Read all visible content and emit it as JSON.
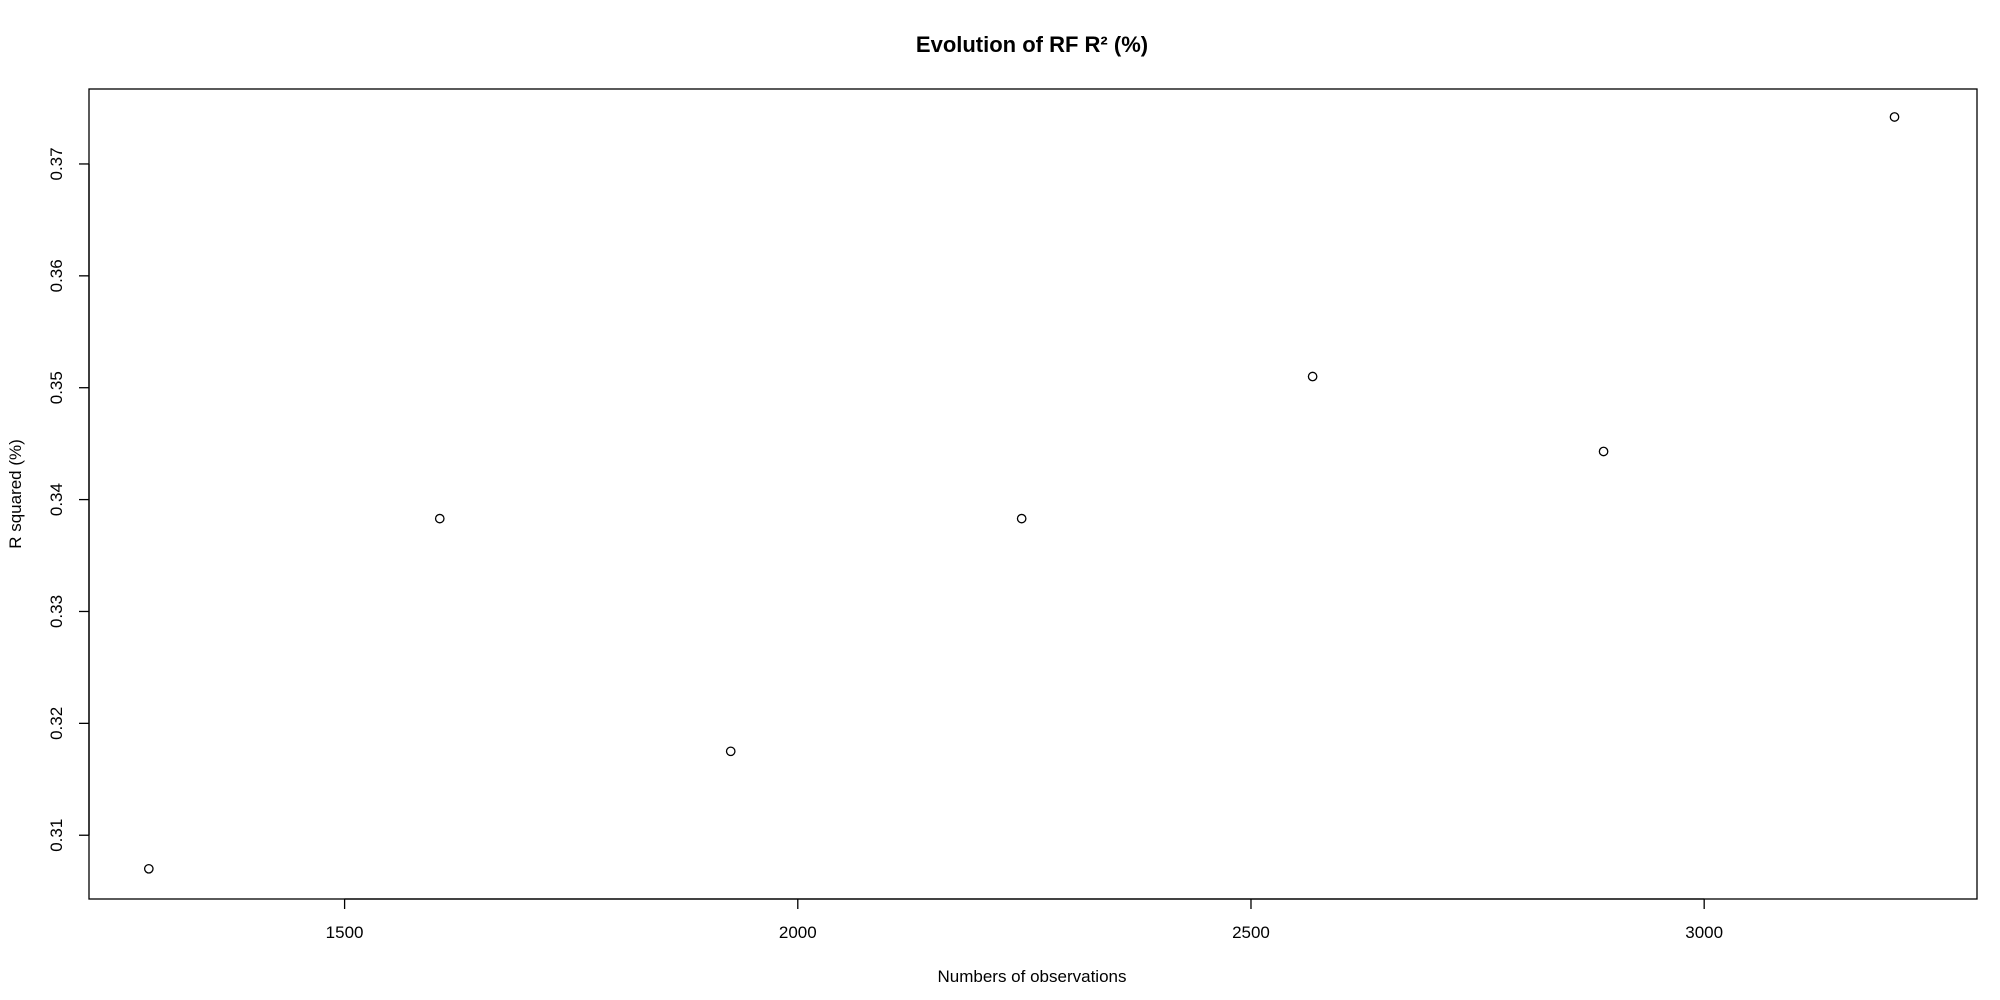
{
  "chart_data": {
    "type": "scatter",
    "title": "Evolution of RF R² (%)",
    "xlabel": "Numbers of observations",
    "ylabel": "R squared (%)",
    "xlim": [
      1218,
      3301
    ],
    "ylim": [
      0.3043,
      0.3767
    ],
    "x_ticks": [
      1500,
      2000,
      2500,
      3000
    ],
    "y_ticks": [
      0.31,
      0.32,
      0.33,
      0.34,
      0.35,
      0.36,
      0.37
    ],
    "grid": false,
    "legend": "none",
    "points": [
      {
        "x": 1284,
        "y": 0.307
      },
      {
        "x": 1605,
        "y": 0.3383
      },
      {
        "x": 1926,
        "y": 0.3175
      },
      {
        "x": 2247,
        "y": 0.3383
      },
      {
        "x": 2568,
        "y": 0.351
      },
      {
        "x": 2889,
        "y": 0.3443
      },
      {
        "x": 3210,
        "y": 0.3742
      }
    ],
    "colors": {
      "marker": "#000000",
      "axis": "#000000",
      "background": "#ffffff"
    }
  }
}
